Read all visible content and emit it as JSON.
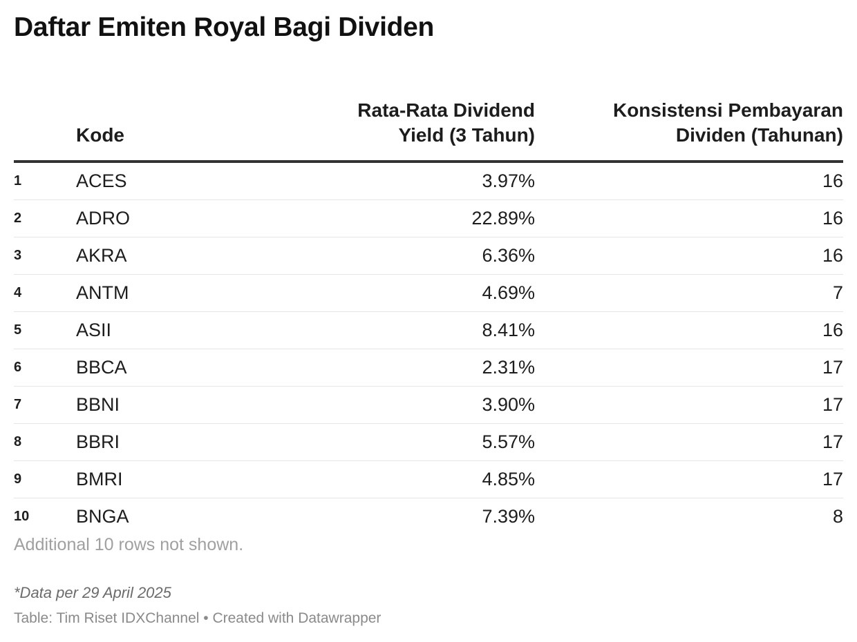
{
  "chart_data": {
    "type": "table",
    "title": "Daftar Emiten Royal Bagi Dividen",
    "columns": [
      "",
      "Kode",
      "Rata-Rata Dividend Yield (3 Tahun)",
      "Konsistensi Pembayaran Dividen (Tahunan)"
    ],
    "rows": [
      [
        "1",
        "ACES",
        "3.97%",
        "16"
      ],
      [
        "2",
        "ADRO",
        "22.89%",
        "16"
      ],
      [
        "3",
        "AKRA",
        "6.36%",
        "16"
      ],
      [
        "4",
        "ANTM",
        "4.69%",
        "7"
      ],
      [
        "5",
        "ASII",
        "8.41%",
        "16"
      ],
      [
        "6",
        "BBCA",
        "2.31%",
        "17"
      ],
      [
        "7",
        "BBNI",
        "3.90%",
        "17"
      ],
      [
        "8",
        "BBRI",
        "5.57%",
        "17"
      ],
      [
        "9",
        "BMRI",
        "4.85%",
        "17"
      ],
      [
        "10",
        "BNGA",
        "7.39%",
        "8"
      ]
    ]
  },
  "header": {
    "code": "Kode",
    "yield_line1": "Rata-Rata Dividend",
    "yield_line2": "Yield (3 Tahun)",
    "cons_line1": "Konsistensi Pembayaran",
    "cons_line2": "Dividen (Tahunan)"
  },
  "footer": {
    "more_rows": "Additional 10 rows not shown.",
    "note": "*Data per 29 April 2025",
    "source": "Table: Tim Riset IDXChannel • Created with Datawrapper"
  },
  "colors": {
    "text": "#1d1d1d",
    "header_rule": "#333333",
    "row_rule": "#e5e5e5",
    "muted": "#a0a0a0"
  }
}
